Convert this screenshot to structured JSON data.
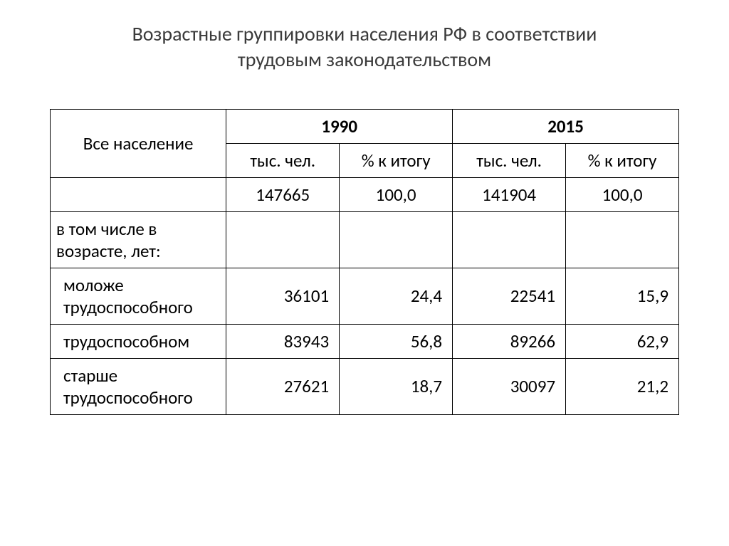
{
  "title_line1": "Возрастные группировки населения РФ в соответствии",
  "title_line2": "трудовым законодательством",
  "table": {
    "row_header": "Все население",
    "year1": "1990",
    "year2": "2015",
    "sub_thousands": "тыс. чел.",
    "sub_percent": "% к итогу",
    "total_1990_thousands": "147665",
    "total_1990_percent": "100,0",
    "total_2015_thousands": "141904",
    "total_2015_percent": "100,0",
    "category_header": "в том числе в возрасте, лет:",
    "rows": [
      {
        "label": "моложе трудоспособного",
        "v1990_thousands": "36101",
        "v1990_percent": "24,4",
        "v2015_thousands": "22541",
        "v2015_percent": "15,9"
      },
      {
        "label": "трудоспособном",
        "v1990_thousands": "83943",
        "v1990_percent": "56,8",
        "v2015_thousands": "89266",
        "v2015_percent": "62,9"
      },
      {
        "label": "старше трудоспособного",
        "v1990_thousands": "27621",
        "v1990_percent": "18,7",
        "v2015_thousands": "30097",
        "v2015_percent": "21,2"
      }
    ]
  },
  "styling": {
    "background_color": "#ffffff",
    "text_color": "#000000",
    "title_color": "#3b3b3b",
    "border_color": "#000000",
    "title_fontsize": 28,
    "table_fontsize": 25,
    "font_family": "Calibri"
  }
}
